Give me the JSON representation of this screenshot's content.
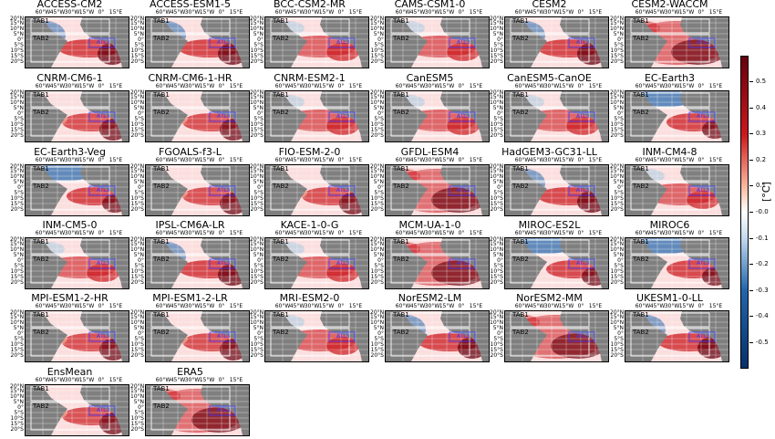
{
  "figure": {
    "lon_labels": [
      "60°W",
      "45°W",
      "30°W",
      "15°W",
      "0°",
      "15°E"
    ],
    "lat_labels": [
      "20°N",
      "15°N",
      "10°N",
      "5°N",
      "0°",
      "5°S",
      "10°S",
      "15°S",
      "20°S"
    ],
    "box_labels": [
      "TAB1",
      "TAB2",
      "ATL3"
    ],
    "panels": [
      {
        "title": "ACCESS-CM2",
        "pattern": "warm-east-cool-west"
      },
      {
        "title": "ACCESS-ESM1-5",
        "pattern": "warm-east-cool-west"
      },
      {
        "title": "BCC-CSM2-MR",
        "pattern": "warm-central"
      },
      {
        "title": "CAMS-CSM1-0",
        "pattern": "warm-central"
      },
      {
        "title": "CESM2",
        "pattern": "warm-east-cool-west"
      },
      {
        "title": "CESM2-WACCM",
        "pattern": "strong-warm"
      },
      {
        "title": "CNRM-CM6-1",
        "pattern": "warm-east"
      },
      {
        "title": "CNRM-CM6-1-HR",
        "pattern": "warm-east"
      },
      {
        "title": "CNRM-ESM2-1",
        "pattern": "warm-central"
      },
      {
        "title": "CanESM5",
        "pattern": "warm-central"
      },
      {
        "title": "CanESM5-CanOE",
        "pattern": "warm-central"
      },
      {
        "title": "EC-Earth3",
        "pattern": "cool-north-warm-east"
      },
      {
        "title": "EC-Earth3-Veg",
        "pattern": "cool-north-warm-east"
      },
      {
        "title": "FGOALS-f3-L",
        "pattern": "warm-east"
      },
      {
        "title": "FIO-ESM-2-0",
        "pattern": "warm-east"
      },
      {
        "title": "GFDL-ESM4",
        "pattern": "strong-warm"
      },
      {
        "title": "HadGEM3-GC31-LL",
        "pattern": "warm-east-cool-west"
      },
      {
        "title": "INM-CM4-8",
        "pattern": "warm-central"
      },
      {
        "title": "INM-CM5-0",
        "pattern": "warm-central"
      },
      {
        "title": "IPSL-CM6A-LR",
        "pattern": "warm-east-cool-west"
      },
      {
        "title": "KACE-1-0-G",
        "pattern": "warm-central"
      },
      {
        "title": "MCM-UA-1-0",
        "pattern": "strong-warm"
      },
      {
        "title": "MIROC-ES2L",
        "pattern": "cool-north-warm-east"
      },
      {
        "title": "MIROC6",
        "pattern": "cool-north-warm-east"
      },
      {
        "title": "MPI-ESM1-2-HR",
        "pattern": "warm-east"
      },
      {
        "title": "MPI-ESM1-2-LR",
        "pattern": "warm-east"
      },
      {
        "title": "MRI-ESM2-0",
        "pattern": "warm-central"
      },
      {
        "title": "NorESM2-LM",
        "pattern": "warm-east-cool-west"
      },
      {
        "title": "NorESM2-MM",
        "pattern": "strong-warm"
      },
      {
        "title": "UKESM1-0-LL",
        "pattern": "warm-east-cool-west"
      },
      {
        "title": "EnsMean",
        "pattern": "warm-east"
      },
      {
        "title": "ERA5",
        "pattern": "strong-warm"
      }
    ]
  },
  "colorbar": {
    "unit": "[°C]",
    "ticks": [
      "0.5",
      "0.4",
      "0.3",
      "0.2",
      "0.1",
      "-0.0",
      "-0.1",
      "-0.2",
      "-0.3",
      "-0.4",
      "-0.5"
    ],
    "colors": {
      "land": "#7f7f7f",
      "ocean": "#ffffff",
      "warm": "#cb181d",
      "cool": "#2166ac",
      "dark_warm": "#67000d",
      "dark_cool": "#08306b"
    }
  }
}
